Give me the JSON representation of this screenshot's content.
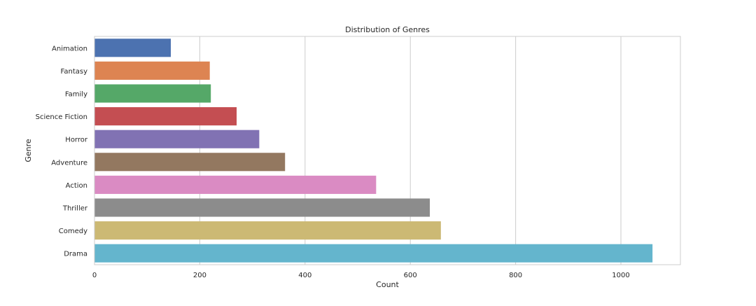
{
  "chart_data": {
    "type": "bar",
    "orientation": "horizontal",
    "title": "Distribution of Genres",
    "xlabel": "Count",
    "ylabel": "Genre",
    "categories": [
      "Animation",
      "Fantasy",
      "Family",
      "Science Fiction",
      "Horror",
      "Adventure",
      "Action",
      "Thriller",
      "Comedy",
      "Drama"
    ],
    "values": [
      145,
      219,
      221,
      270,
      313,
      362,
      535,
      637,
      658,
      1060
    ],
    "colors": [
      "#4c72b0",
      "#dd8452",
      "#55a868",
      "#c44e52",
      "#8172b3",
      "#937860",
      "#da8bc3",
      "#8c8c8c",
      "#ccb974",
      "#64b5cd"
    ],
    "xlim": [
      0,
      1113
    ],
    "xticks": [
      0,
      200,
      400,
      600,
      800,
      1000
    ],
    "grid": true,
    "grid_axis": "x"
  }
}
